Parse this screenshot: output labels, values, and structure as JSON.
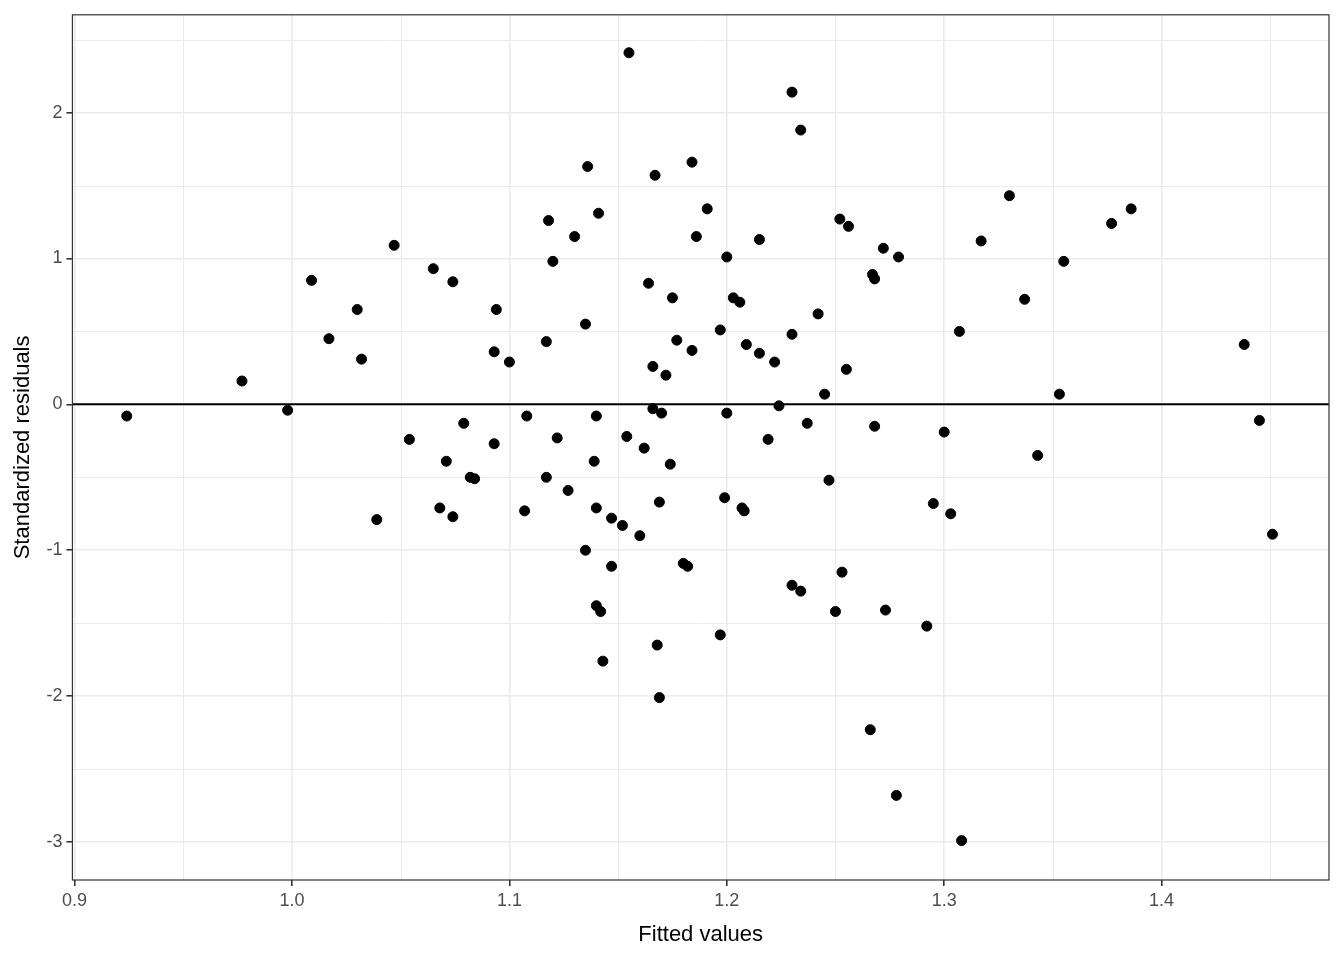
{
  "chart_data": {
    "type": "scatter",
    "x_label": "Fitted values",
    "y_label": "Standardized residuals",
    "color": "#000000",
    "marker": "circle",
    "grid": true,
    "hline": 0,
    "xlim": [
      0.899,
      1.477
    ],
    "ylim": [
      -3.26,
      2.67
    ],
    "xticks": [
      0.9,
      {
        "value": 1,
        "label": "1.0"
      },
      1.1,
      1.2,
      1.3,
      1.4
    ],
    "yticks": [
      -3,
      -2,
      -1,
      0,
      1,
      2
    ],
    "x": [
      0.924,
      0.977,
      0.998,
      1.009,
      1.017,
      1.03,
      1.032,
      1.039,
      1.047,
      1.054,
      1.065,
      1.068,
      1.071,
      1.074,
      1.074,
      1.079,
      1.082,
      1.084,
      1.093,
      1.094,
      1.093,
      1.1,
      1.107,
      1.108,
      1.117,
      1.117,
      1.118,
      1.12,
      1.122,
      1.127,
      1.13,
      1.135,
      1.135,
      1.136,
      1.139,
      1.14,
      1.14,
      1.14,
      1.141,
      1.142,
      1.143,
      1.147,
      1.147,
      1.152,
      1.154,
      1.155,
      1.16,
      1.162,
      1.164,
      1.166,
      1.166,
      1.167,
      1.168,
      1.17,
      1.169,
      1.169,
      1.172,
      1.174,
      1.175,
      1.177,
      1.18,
      1.182,
      1.184,
      1.184,
      1.186,
      1.191,
      1.197,
      1.197,
      1.199,
      1.2,
      1.2,
      1.203,
      1.206,
      1.207,
      1.208,
      1.209,
      1.215,
      1.215,
      1.219,
      1.222,
      1.224,
      1.23,
      1.23,
      1.23,
      1.234,
      1.234,
      1.237,
      1.242,
      1.245,
      1.247,
      1.25,
      1.252,
      1.253,
      1.255,
      1.256,
      1.266,
      1.267,
      1.268,
      1.268,
      1.272,
      1.273,
      1.278,
      1.279,
      1.292,
      1.295,
      1.3,
      1.303,
      1.307,
      1.308,
      1.317,
      1.33,
      1.337,
      1.343,
      1.353,
      1.355,
      1.377,
      1.386,
      1.438,
      1.445,
      1.451
    ],
    "values": [
      -0.08,
      0.16,
      -0.04,
      0.85,
      0.45,
      0.65,
      0.31,
      -0.79,
      1.09,
      -0.24,
      0.93,
      -0.71,
      -0.39,
      0.84,
      -0.77,
      -0.13,
      -0.5,
      -0.51,
      0.36,
      0.65,
      -0.27,
      0.29,
      -0.73,
      -0.08,
      0.43,
      -0.5,
      1.26,
      0.98,
      -0.23,
      -0.59,
      1.15,
      0.55,
      -1.0,
      1.63,
      -0.39,
      -0.08,
      -1.38,
      -0.71,
      1.31,
      -1.42,
      -1.76,
      -0.78,
      -1.11,
      -0.83,
      -0.22,
      2.41,
      -0.9,
      -0.3,
      0.83,
      0.26,
      -0.03,
      1.57,
      -1.65,
      -0.06,
      -0.67,
      -2.01,
      0.2,
      -0.41,
      0.73,
      0.44,
      -1.09,
      -1.11,
      0.37,
      1.66,
      1.15,
      1.34,
      -1.58,
      0.51,
      -0.64,
      1.01,
      -0.06,
      0.73,
      0.7,
      -0.71,
      -0.73,
      0.41,
      1.13,
      0.35,
      -0.24,
      0.29,
      -0.01,
      2.14,
      0.48,
      -1.24,
      1.88,
      -1.28,
      -0.13,
      0.62,
      0.07,
      -0.52,
      -1.42,
      1.27,
      -1.15,
      0.24,
      1.22,
      -2.23,
      0.89,
      0.86,
      -0.15,
      1.07,
      -1.41,
      -2.68,
      1.01,
      -1.52,
      -0.68,
      -0.19,
      -0.75,
      0.5,
      -2.99,
      1.12,
      1.43,
      0.72,
      -0.35,
      0.07,
      0.98,
      1.24,
      1.34,
      0.41,
      -0.11,
      -0.89
    ]
  }
}
